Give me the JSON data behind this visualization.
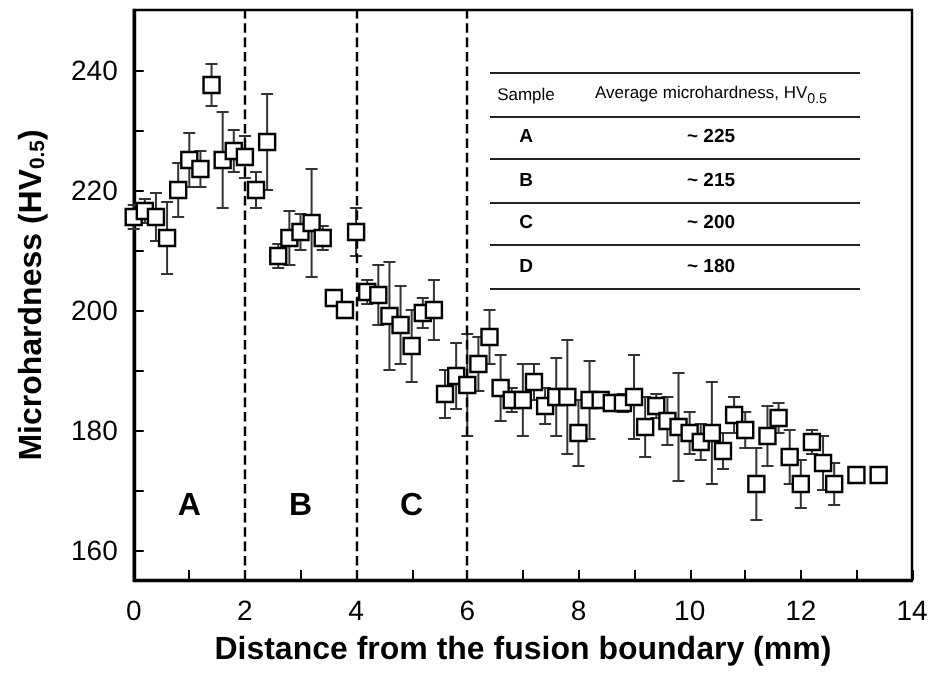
{
  "chart_data": {
    "type": "scatter",
    "xlabel": "Distance from the fusion boundary (mm)",
    "ylabel": "Microhardness (HV$_{0.5}$)",
    "color": "#000000",
    "marker": "square",
    "x": [
      0,
      0.2,
      0.4,
      0.6,
      0.8,
      1.0,
      1.2,
      1.4,
      1.6,
      1.8,
      2.0,
      2.2,
      2.4,
      2.6,
      2.8,
      3.0,
      3.2,
      3.4,
      3.6,
      3.8,
      4.0,
      4.2,
      4.4,
      4.6,
      4.8,
      5.0,
      5.2,
      5.4,
      5.6,
      5.8,
      6.0,
      6.2,
      6.4,
      6.6,
      6.8,
      7.0,
      7.2,
      7.4,
      7.6,
      7.8,
      8.0,
      8.2,
      8.4,
      8.6,
      8.8,
      9.0,
      9.2,
      9.4,
      9.6,
      9.8,
      10.0,
      10.2,
      10.4,
      10.6,
      10.8,
      11.0,
      11.2,
      11.4,
      11.6,
      11.8,
      12.0,
      12.2,
      12.4,
      12.6,
      13.0,
      13.4
    ],
    "values": [
      215.5,
      216.5,
      215.5,
      212,
      220,
      225,
      223.5,
      237.5,
      225,
      226.5,
      225.5,
      220,
      228,
      209,
      212,
      213,
      214.5,
      212,
      202,
      200,
      213,
      203,
      202.5,
      199,
      197.5,
      194,
      199.5,
      200,
      186,
      189,
      187.5,
      191,
      195.5,
      187,
      185,
      185,
      188,
      184,
      185.5,
      185.5,
      179.5,
      185,
      185,
      184.5,
      184.5,
      185.5,
      180.5,
      184,
      181.5,
      180.5,
      179.5,
      178,
      179.5,
      176.5,
      182.5,
      180,
      171,
      179,
      182,
      175.5,
      171,
      178,
      174.5,
      171,
      172.5,
      172.5
    ],
    "errors": [
      2,
      2,
      4,
      6,
      4.5,
      4.5,
      3,
      3.5,
      8,
      3.5,
      3.5,
      3,
      8,
      2,
      4.5,
      3,
      9,
      2,
      null,
      1,
      4,
      2,
      5,
      9,
      6.5,
      6,
      2.5,
      5,
      4,
      5.5,
      8.5,
      4.5,
      4.5,
      5.5,
      2,
      6,
      3,
      3,
      6.5,
      9.5,
      5.5,
      6.5,
      1,
      1,
      1.5,
      7,
      5,
      2,
      4,
      9,
      3.5,
      3,
      8.5,
      3,
      3,
      3,
      6,
      5,
      2.5,
      4.5,
      4,
      2,
      4.5,
      3.5,
      null,
      1
    ],
    "xlim": [
      0,
      14
    ],
    "ylim": [
      155,
      250
    ],
    "xticks": [
      0,
      {
        "value": 1,
        "label": null
      },
      2,
      {
        "value": 3,
        "label": null
      },
      4,
      {
        "value": 5,
        "label": null
      },
      6,
      {
        "value": 7,
        "label": null
      },
      8,
      {
        "value": 9,
        "label": null
      },
      10,
      {
        "value": 11,
        "label": null
      },
      12,
      {
        "value": 13,
        "label": null
      },
      14
    ],
    "yticks": [
      160,
      {
        "value": 170,
        "label": null
      },
      180,
      {
        "value": 190,
        "label": null
      },
      200,
      {
        "value": 210,
        "label": null
      },
      220,
      {
        "value": 230,
        "label": null
      },
      240
    ],
    "ref_lines": [
      {
        "axis": "x",
        "value": 2,
        "color": "#000000",
        "line_style": "dashed"
      },
      {
        "axis": "x",
        "value": 4,
        "color": "#000000",
        "line_style": "dashed"
      },
      {
        "axis": "x",
        "value": 6,
        "color": "#000000",
        "line_style": "dashed"
      }
    ],
    "annotations": [
      "A",
      "B",
      "C",
      "Sample",
      "Average microhardness, HV$_{0.5}$",
      "A",
      "~ 225",
      "B",
      "~ 215",
      "C",
      "~ 200",
      "D",
      "~ 180"
    ]
  }
}
